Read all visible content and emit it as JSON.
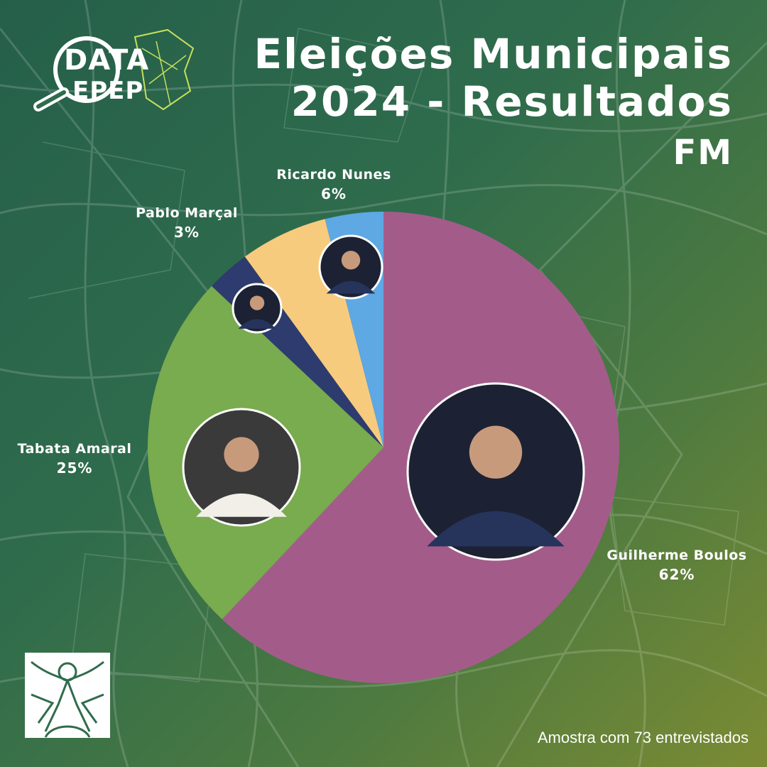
{
  "header": {
    "title_line1": "Eleições Municipais",
    "title_line2": "2024 - Resultados",
    "title_line3": "FM"
  },
  "logo": {
    "line1": "DATA",
    "line2": "EPEP"
  },
  "chart_data": {
    "type": "pie",
    "slices": [
      {
        "label": "Guilherme Boulos",
        "value": 62,
        "display": "62%",
        "color": "#a35c8a"
      },
      {
        "label": "Tabata Amaral",
        "value": 25,
        "display": "25%",
        "color": "#79ab4f"
      },
      {
        "label": "Pablo Marçal",
        "value": 3,
        "display": "3%",
        "color": "#2e3b6e"
      },
      {
        "label": "Ricardo Nunes",
        "value": 6,
        "display": "6%",
        "color": "#f7cb7e"
      },
      {
        "label": "",
        "value": 4,
        "display": "",
        "color": "#5ea8e3"
      }
    ]
  },
  "footer": {
    "sample_text": "Amostra com 73 entrevistados"
  },
  "colors": {
    "accent_text": "#ffffff",
    "bg_dark": "#255f4a",
    "bg_light": "#7b8b33"
  }
}
